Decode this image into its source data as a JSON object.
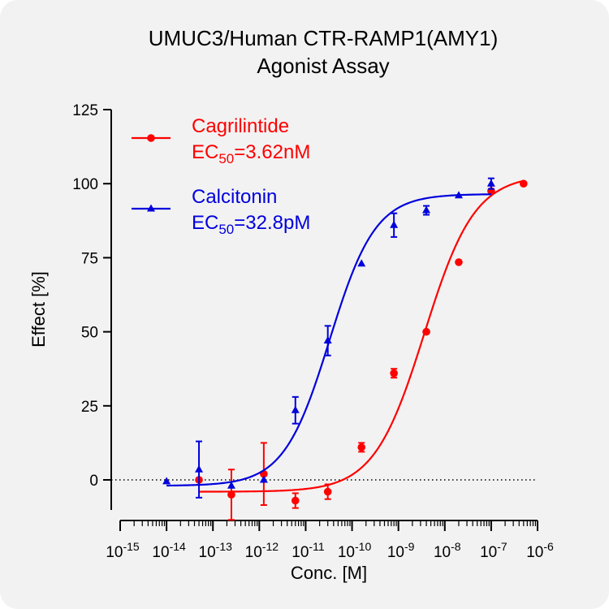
{
  "chart_data": {
    "type": "scatter",
    "title": [
      "UMUC3/Human CTR-RAMP1(AMY1)",
      "Agonist Assay"
    ],
    "xlabel": "Conc. [M]",
    "ylabel": "Effect  [%]",
    "xscale": "log",
    "xlim": [
      1e-15,
      1e-06
    ],
    "ylim": [
      -10,
      125
    ],
    "yticks": [
      0,
      25,
      50,
      75,
      100,
      125
    ],
    "xticks": [
      {
        "value": 1e-15,
        "base": "10",
        "exp": "-15"
      },
      {
        "value": 1e-14,
        "base": "10",
        "exp": "-14"
      },
      {
        "value": 1e-13,
        "base": "10",
        "exp": "-13"
      },
      {
        "value": 1e-12,
        "base": "10",
        "exp": "-12"
      },
      {
        "value": 1e-11,
        "base": "10",
        "exp": "-11"
      },
      {
        "value": 1e-10,
        "base": "10",
        "exp": "-10"
      },
      {
        "value": 1e-09,
        "base": "10",
        "exp": "-9"
      },
      {
        "value": 1e-08,
        "base": "10",
        "exp": "-8"
      },
      {
        "value": 1e-07,
        "base": "10",
        "exp": "-7"
      },
      {
        "value": 1e-06,
        "base": "10",
        "exp": "-6"
      }
    ],
    "reference_line": {
      "y": 0,
      "style": "dotted"
    },
    "legend_position": "top-left",
    "series": [
      {
        "name": "Cagrilintide",
        "ec50_prefix": "EC",
        "ec50_sub": "50",
        "ec50_value": "=3.62nM",
        "color": "#ff0000",
        "marker": "circle",
        "points": [
          {
            "x": 5e-14,
            "y": 0,
            "err": 0
          },
          {
            "x": 2.5e-13,
            "y": -5,
            "err": 8.5
          },
          {
            "x": 1.25e-12,
            "y": 2,
            "err": 10.5
          },
          {
            "x": 6e-12,
            "y": -7,
            "err": 2.5
          },
          {
            "x": 3e-11,
            "y": -4,
            "err": 2.5
          },
          {
            "x": 1.6e-10,
            "y": 11,
            "err": 1.5
          },
          {
            "x": 8e-10,
            "y": 36,
            "err": 1.5
          },
          {
            "x": 4e-09,
            "y": 50,
            "err": 0
          },
          {
            "x": 2e-08,
            "y": 73.5,
            "err": 0
          },
          {
            "x": 1e-07,
            "y": 97.5,
            "err": 0
          },
          {
            "x": 5e-07,
            "y": 100,
            "err": 0
          }
        ],
        "fit": {
          "bottom": -4,
          "top": 103,
          "hill": 0.8,
          "log_ec50": -8.44
        }
      },
      {
        "name": "Calcitonin",
        "ec50_prefix": "EC",
        "ec50_sub": "50",
        "ec50_value": "=32.8pM",
        "color": "#0000dd",
        "marker": "triangle",
        "points": [
          {
            "x": 1e-14,
            "y": -0.5,
            "err": 0
          },
          {
            "x": 5e-14,
            "y": 3.5,
            "err": 9.5
          },
          {
            "x": 2.5e-13,
            "y": -2,
            "err": 0
          },
          {
            "x": 1.25e-12,
            "y": 0,
            "err": 0
          },
          {
            "x": 6e-12,
            "y": 23.5,
            "err": 4.5
          },
          {
            "x": 3e-11,
            "y": 47,
            "err": 5
          },
          {
            "x": 1.6e-10,
            "y": 73,
            "err": 0
          },
          {
            "x": 8e-10,
            "y": 86,
            "err": 4
          },
          {
            "x": 4e-09,
            "y": 91,
            "err": 1.5
          },
          {
            "x": 2e-08,
            "y": 96,
            "err": 0
          },
          {
            "x": 1e-07,
            "y": 100,
            "err": 1.8
          }
        ],
        "fit": {
          "bottom": -2,
          "top": 96.5,
          "hill": 0.88,
          "log_ec50": -10.484
        }
      }
    ]
  }
}
